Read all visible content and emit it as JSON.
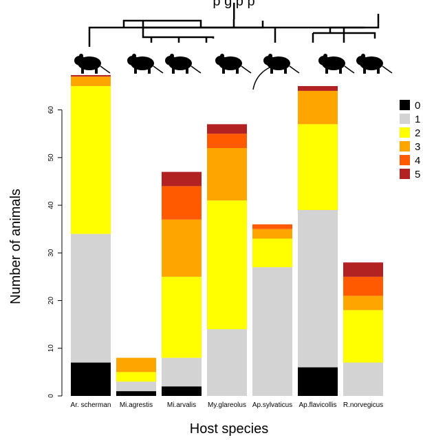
{
  "chart_data": {
    "type": "bar",
    "stacked": true,
    "title_fragment": "p g   p   p",
    "xlabel": "Host species",
    "ylabel": "Number of animals",
    "ylim": [
      0,
      65
    ],
    "yticks": [
      0,
      10,
      20,
      30,
      40,
      50,
      60
    ],
    "grid": false,
    "legend_position": "right",
    "categories": [
      "Ar. scherman",
      "Mi.agrestis",
      "Mi.arvalis",
      "My.glareolus",
      "Ap.sylvaticus",
      "Ap.flavicollis",
      "R.norvegicus"
    ],
    "series": [
      {
        "name": "0",
        "color": "#000000",
        "values": [
          7,
          1,
          2,
          0,
          0,
          6,
          0
        ]
      },
      {
        "name": "1",
        "color": "#d3d3d3",
        "values": [
          27,
          2,
          6,
          14,
          27,
          33,
          7
        ]
      },
      {
        "name": "2",
        "color": "#ffff00",
        "values": [
          31,
          2,
          17,
          27,
          6,
          18,
          11
        ]
      },
      {
        "name": "3",
        "color": "#ffa500",
        "values": [
          2,
          3,
          12,
          11,
          2,
          7,
          3
        ]
      },
      {
        "name": "4",
        "color": "#ff5a00",
        "values": [
          0,
          0,
          7,
          3,
          1,
          0,
          4
        ]
      },
      {
        "name": "5",
        "color": "#b22222",
        "values": [
          0.3,
          0,
          3,
          2,
          0,
          1,
          3
        ]
      }
    ]
  },
  "phylogeny": {
    "silhouettes": [
      "rodent-silhouette",
      "rodent-silhouette",
      "rodent-silhouette",
      "rodent-silhouette",
      "rodent-silhouette",
      "rodent-silhouette",
      "rodent-silhouette"
    ]
  }
}
